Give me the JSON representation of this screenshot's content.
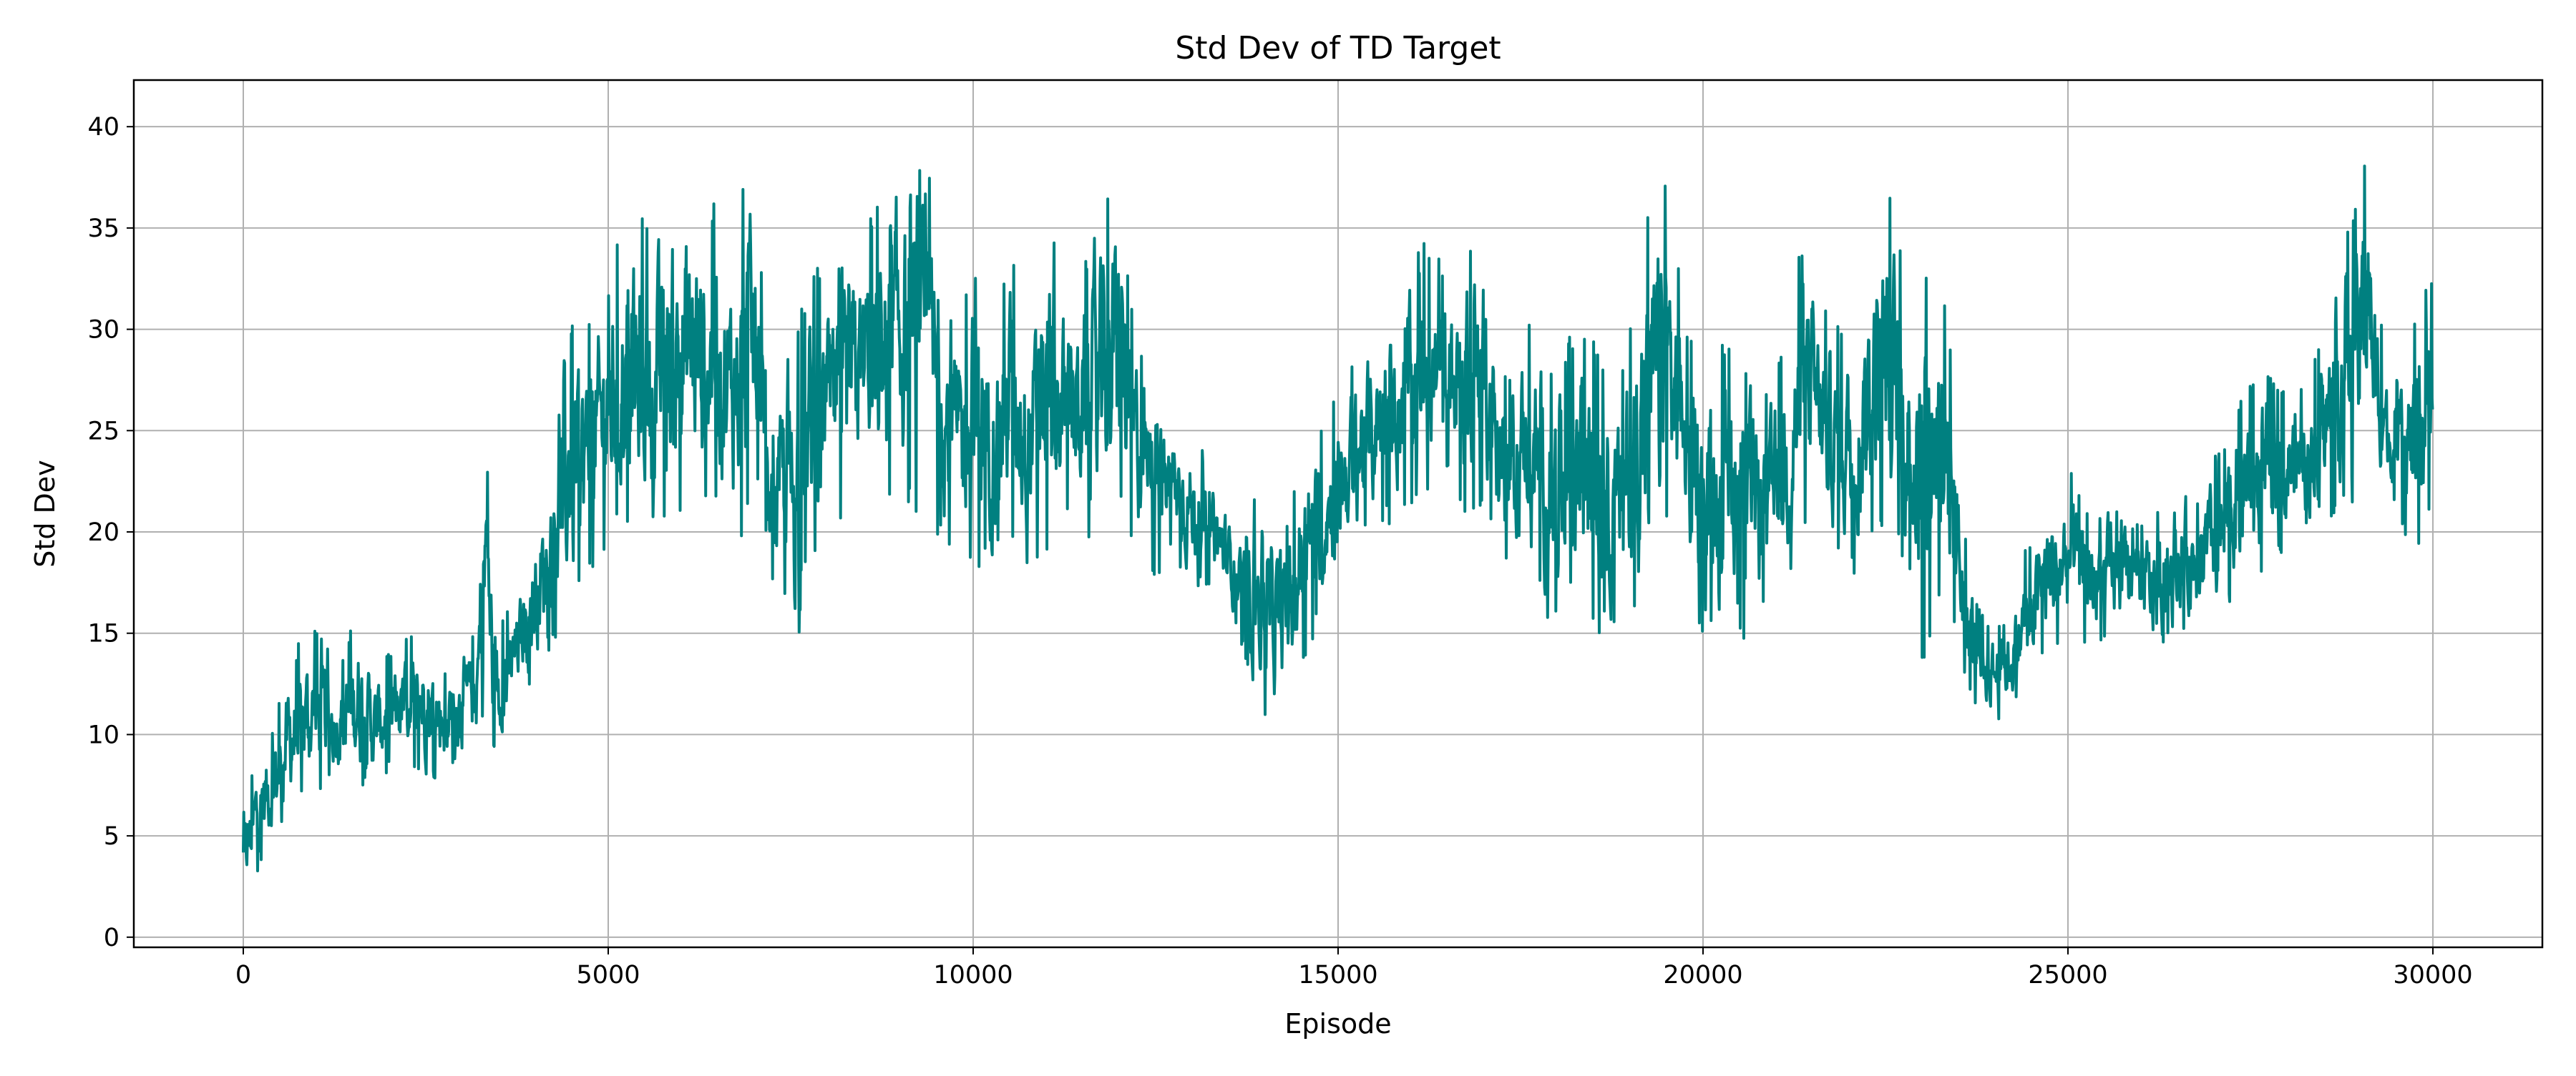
{
  "chart_data": {
    "type": "line",
    "title": "Std Dev of TD Target",
    "xlabel": "Episode",
    "ylabel": "Std Dev",
    "xlim": [
      -1500,
      31500
    ],
    "ylim": [
      -0.5,
      42.3
    ],
    "xticks": [
      0,
      5000,
      10000,
      15000,
      20000,
      25000,
      30000
    ],
    "yticks": [
      0,
      5,
      10,
      15,
      20,
      25,
      30,
      35,
      40
    ],
    "grid": true,
    "legend": "none",
    "colors": {
      "line": "#008080",
      "grid": "#b0b0b0",
      "axes": "#000000"
    },
    "series": [
      {
        "upper_envelope": {
          "x": [
            0,
            200,
            400,
            600,
            800,
            1000,
            1300,
            1600,
            1800,
            2000,
            2300,
            2500,
            2800,
            3000,
            3200,
            3300,
            3350,
            3400,
            3500,
            3700,
            3900,
            4100,
            4300,
            4500,
            4700,
            5000,
            5300,
            5600,
            5900,
            6200,
            6500,
            6700,
            6900,
            7000,
            7100,
            7200,
            7400,
            7600,
            7800,
            8000,
            8200,
            8500,
            8800,
            9000,
            9200,
            9400,
            9600,
            9800,
            10000,
            10300,
            10500,
            10800,
            11000,
            11300,
            11600,
            11900,
            12000,
            12200,
            12500,
            12700,
            13000,
            13300,
            13500,
            13700,
            13900,
            14100,
            14300,
            14500,
            14800,
            15000,
            15300,
            15600,
            15900,
            16200,
            16500,
            16800,
            17000,
            17300,
            17600,
            17900,
            18200,
            18500,
            18800,
            19100,
            19400,
            19500,
            19700,
            20000,
            20300,
            20600,
            20900,
            21200,
            21400,
            21600,
            21800,
            22100,
            22400,
            22600,
            22800,
            23000,
            23200,
            23400,
            23600,
            23800,
            24000,
            24200,
            24400,
            24700,
            25000,
            25300,
            25600,
            25900,
            26200,
            26500,
            26800,
            27100,
            27400,
            27700,
            28000,
            28300,
            28600,
            28800,
            29000,
            29100,
            29200,
            29400,
            29600,
            29800,
            30000
          ],
          "y": [
            6.2,
            9.7,
            10.3,
            13.5,
            15.0,
            15.3,
            13.5,
            16.4,
            13.5,
            14.0,
            15.0,
            15.8,
            13.0,
            15.0,
            14.8,
            27.0,
            28.2,
            20.0,
            15.5,
            16.5,
            19.5,
            22.0,
            26.0,
            31.2,
            30.5,
            33.0,
            36.3,
            35.0,
            37.5,
            38.1,
            36.0,
            34.5,
            38.2,
            37.0,
            33.0,
            24.0,
            29.0,
            31.5,
            33.3,
            32.5,
            34.0,
            35.0,
            37.0,
            39.3,
            38.0,
            38.3,
            32.0,
            31.0,
            33.9,
            31.0,
            34.9,
            31.0,
            36.0,
            32.0,
            34.0,
            37.8,
            37.7,
            31.0,
            27.5,
            26.5,
            25.0,
            23.0,
            21.5,
            20.0,
            23.4,
            21.0,
            20.5,
            24.5,
            25.5,
            27.0,
            29.5,
            31.0,
            33.0,
            34.4,
            33.0,
            34.5,
            33.0,
            28.0,
            30.8,
            29.0,
            30.0,
            30.5,
            26.0,
            34.0,
            37.5,
            37.5,
            32.0,
            27.5,
            30.0,
            29.0,
            27.0,
            32.0,
            35.3,
            32.0,
            30.0,
            31.0,
            36.5,
            36.8,
            32.0,
            33.0,
            34.8,
            30.0,
            20.0,
            16.0,
            15.5,
            16.0,
            19.0,
            22.0,
            23.3,
            21.0,
            21.8,
            20.5,
            21.0,
            23.0,
            22.0,
            24.5,
            27.5,
            28.0,
            27.5,
            28.0,
            31.5,
            35.6,
            37.0,
            40.3,
            34.0,
            27.0,
            29.0,
            31.0,
            33.3
          ]
        },
        "lower_envelope": {
          "x": [
            0,
            200,
            400,
            600,
            800,
            1000,
            1300,
            1600,
            1800,
            2000,
            2300,
            2500,
            2800,
            3000,
            3200,
            3300,
            3350,
            3400,
            3500,
            3700,
            3900,
            4100,
            4300,
            4500,
            4700,
            5000,
            5300,
            5600,
            5900,
            6200,
            6500,
            6700,
            6900,
            7000,
            7100,
            7200,
            7400,
            7600,
            7800,
            8000,
            8200,
            8500,
            8800,
            9000,
            9200,
            9400,
            9600,
            9800,
            10000,
            10300,
            10500,
            10800,
            11000,
            11300,
            11600,
            11900,
            12000,
            12200,
            12500,
            12700,
            13000,
            13300,
            13500,
            13700,
            13900,
            14100,
            14300,
            14500,
            14800,
            15000,
            15300,
            15600,
            15900,
            16200,
            16500,
            16800,
            17000,
            17300,
            17600,
            17900,
            18200,
            18500,
            18800,
            19100,
            19400,
            19500,
            19700,
            20000,
            20300,
            20600,
            20900,
            21200,
            21400,
            21600,
            21800,
            22100,
            22400,
            22600,
            22800,
            23000,
            23200,
            23400,
            23600,
            23800,
            24000,
            24200,
            24400,
            24700,
            25000,
            25300,
            25600,
            25900,
            26200,
            26500,
            26800,
            27100,
            27400,
            27700,
            28000,
            28300,
            28600,
            28800,
            29000,
            29100,
            29200,
            29400,
            29600,
            29800,
            30000
          ],
          "y": [
            1.5,
            3.0,
            4.5,
            5.5,
            6.5,
            7.0,
            7.5,
            7.0,
            7.0,
            8.0,
            8.5,
            7.5,
            8.0,
            8.5,
            9.0,
            10.0,
            10.5,
            8.0,
            9.0,
            11.0,
            12.0,
            13.5,
            14.5,
            15.5,
            17.0,
            19.0,
            19.5,
            19.0,
            19.5,
            20.0,
            20.5,
            19.5,
            19.0,
            21.0,
            22.5,
            18.0,
            16.0,
            13.0,
            18.0,
            20.0,
            19.0,
            22.0,
            20.0,
            21.0,
            20.5,
            20.0,
            19.0,
            17.5,
            17.0,
            18.0,
            19.5,
            17.5,
            17.5,
            20.0,
            19.0,
            18.5,
            20.0,
            19.0,
            17.0,
            18.5,
            17.0,
            17.0,
            16.0,
            14.0,
            11.0,
            10.0,
            11.5,
            13.0,
            16.0,
            17.5,
            19.0,
            20.0,
            20.5,
            21.5,
            22.0,
            20.0,
            20.5,
            18.0,
            19.0,
            14.5,
            16.0,
            14.0,
            15.0,
            15.5,
            17.5,
            20.0,
            18.5,
            14.5,
            16.0,
            14.0,
            15.5,
            17.0,
            19.0,
            20.0,
            18.5,
            17.5,
            20.0,
            19.0,
            17.0,
            13.0,
            15.5,
            14.5,
            12.0,
            11.0,
            10.5,
            11.0,
            12.0,
            13.5,
            14.0,
            14.5,
            14.0,
            15.0,
            13.5,
            14.5,
            15.0,
            15.5,
            17.0,
            18.0,
            19.0,
            19.5,
            20.0,
            21.0,
            21.0,
            25.0,
            22.0,
            22.0,
            19.0,
            18.0,
            21.5
          ]
        }
      }
    ]
  }
}
